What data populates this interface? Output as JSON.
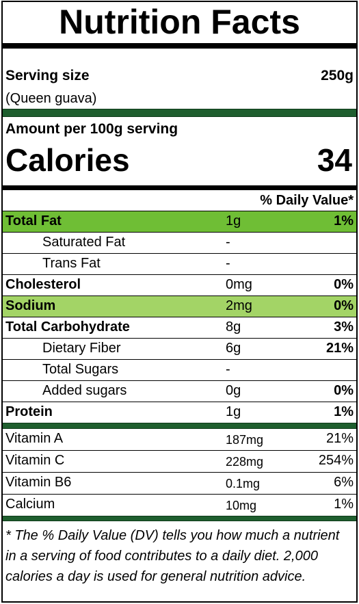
{
  "title": "Nutrition Facts",
  "serving": {
    "label": "Serving size",
    "size": "250g",
    "desc": "(Queen guava)"
  },
  "amount": {
    "per": "Amount per 100g serving",
    "calories_label": "Calories",
    "calories_value": "34"
  },
  "dv_header": "% Daily Value*",
  "nutrients": [
    {
      "name": "Total Fat",
      "amount": "1g",
      "dv": "1%"
    },
    {
      "name": "Saturated Fat",
      "amount": "-",
      "dv": ""
    },
    {
      "name": "Trans Fat",
      "amount": "-",
      "dv": ""
    },
    {
      "name": "Cholesterol",
      "amount": "0mg",
      "dv": "0%"
    },
    {
      "name": "Sodium",
      "amount": "2mg",
      "dv": "0%"
    },
    {
      "name": "Total Carbohydrate",
      "amount": "8g",
      "dv": "3%"
    },
    {
      "name": "Dietary Fiber",
      "amount": "6g",
      "dv": "21%"
    },
    {
      "name": "Total Sugars",
      "amount": "-",
      "dv": ""
    },
    {
      "name": "Added sugars",
      "amount": "0g",
      "dv": "0%"
    },
    {
      "name": "Protein",
      "amount": "1g",
      "dv": "1%"
    }
  ],
  "vitamins": [
    {
      "name": "Vitamin A",
      "amount": "187mg",
      "dv": "21%"
    },
    {
      "name": "Vitamin C",
      "amount": "228mg",
      "dv": "254%"
    },
    {
      "name": "Vitamin B6",
      "amount": "0.1mg",
      "dv": "6%"
    },
    {
      "name": "Calcium",
      "amount": "10mg",
      "dv": "1%"
    }
  ],
  "footnote": "* The % Daily Value (DV) tells you how much a nutrient in a serving of food contributes to a daily diet. 2,000 calories a day is used for general nutrition advice.",
  "colors": {
    "highlight_fat": "#6fbe35",
    "highlight_sodium": "#a3d466",
    "dark_green_rule": "#1e5e2e"
  }
}
